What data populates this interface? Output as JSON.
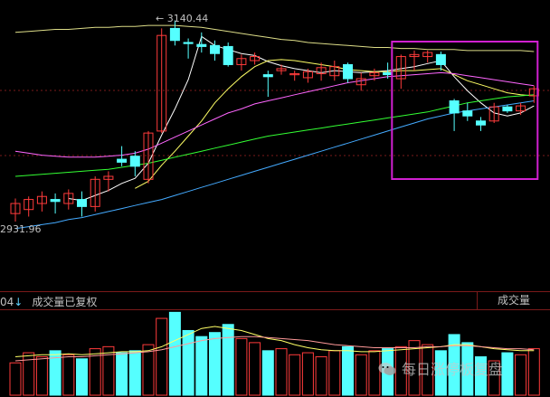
{
  "labels": {
    "high_value": "3140.44",
    "low_value": "2931.96",
    "volume_code": "04",
    "volume_title": "成交量已复权",
    "volume_right": "成交量",
    "watermark": "每日涨停板复盘"
  },
  "colors": {
    "up": "#ff3b3b",
    "down": "#55ffff",
    "ma5": "#ffffff",
    "ma10": "#ffff66",
    "ma20": "#ff66ff",
    "ma60": "#33ff33",
    "ma120": "#44aaff",
    "highlight_box": "#d020d0",
    "grid": "#7a1a1a"
  },
  "chart_data": [
    {
      "type": "candlestick",
      "title": "",
      "annotations": [
        "3140.44",
        "2931.96"
      ],
      "ylim": [
        2931.96,
        3140.44
      ],
      "candles": [
        {
          "o": 2948,
          "h": 2963,
          "l": 2940,
          "c": 2958
        },
        {
          "o": 2952,
          "h": 2965,
          "l": 2945,
          "c": 2962
        },
        {
          "o": 2958,
          "h": 2970,
          "l": 2950,
          "c": 2965
        },
        {
          "o": 2962,
          "h": 2968,
          "l": 2948,
          "c": 2960
        },
        {
          "o": 2958,
          "h": 2972,
          "l": 2952,
          "c": 2968
        },
        {
          "o": 2962,
          "h": 2970,
          "l": 2945,
          "c": 2955
        },
        {
          "o": 2955,
          "h": 2985,
          "l": 2950,
          "c": 2982
        },
        {
          "o": 2982,
          "h": 2990,
          "l": 2970,
          "c": 2985
        },
        {
          "o": 3002,
          "h": 3015,
          "l": 2995,
          "c": 2999
        },
        {
          "o": 3005,
          "h": 3010,
          "l": 2985,
          "c": 2995
        },
        {
          "o": 2982,
          "h": 3030,
          "l": 2978,
          "c": 3028
        },
        {
          "o": 3030,
          "h": 3132,
          "l": 3028,
          "c": 3125
        },
        {
          "o": 3132,
          "h": 3140,
          "l": 3115,
          "c": 3120
        },
        {
          "o": 3118,
          "h": 3122,
          "l": 3102,
          "c": 3117
        },
        {
          "o": 3116,
          "h": 3128,
          "l": 3108,
          "c": 3114
        },
        {
          "o": 3115,
          "h": 3120,
          "l": 3100,
          "c": 3107
        },
        {
          "o": 3114,
          "h": 3118,
          "l": 3094,
          "c": 3096
        },
        {
          "o": 3096,
          "h": 3106,
          "l": 3090,
          "c": 3102
        },
        {
          "o": 3100,
          "h": 3108,
          "l": 3096,
          "c": 3104
        },
        {
          "o": 3086,
          "h": 3090,
          "l": 3064,
          "c": 3084
        },
        {
          "o": 3090,
          "h": 3096,
          "l": 3086,
          "c": 3092
        },
        {
          "o": 3086,
          "h": 3090,
          "l": 3080,
          "c": 3087
        },
        {
          "o": 3083,
          "h": 3092,
          "l": 3078,
          "c": 3089
        },
        {
          "o": 3087,
          "h": 3098,
          "l": 3080,
          "c": 3093
        },
        {
          "o": 3085,
          "h": 3100,
          "l": 3080,
          "c": 3094
        },
        {
          "o": 3096,
          "h": 3098,
          "l": 3078,
          "c": 3082
        },
        {
          "o": 3076,
          "h": 3088,
          "l": 3070,
          "c": 3082
        },
        {
          "o": 3085,
          "h": 3092,
          "l": 3080,
          "c": 3088
        },
        {
          "o": 3088,
          "h": 3098,
          "l": 3082,
          "c": 3086
        },
        {
          "o": 3082,
          "h": 3106,
          "l": 3072,
          "c": 3104
        },
        {
          "o": 3104,
          "h": 3110,
          "l": 3090,
          "c": 3106
        },
        {
          "o": 3104,
          "h": 3110,
          "l": 3098,
          "c": 3108
        },
        {
          "o": 3106,
          "h": 3109,
          "l": 3090,
          "c": 3096
        },
        {
          "o": 3060,
          "h": 3062,
          "l": 3030,
          "c": 3048
        },
        {
          "o": 3050,
          "h": 3058,
          "l": 3040,
          "c": 3045
        },
        {
          "o": 3040,
          "h": 3044,
          "l": 3030,
          "c": 3036
        },
        {
          "o": 3040,
          "h": 3058,
          "l": 3038,
          "c": 3054
        },
        {
          "o": 3054,
          "h": 3056,
          "l": 3048,
          "c": 3050
        },
        {
          "o": 3050,
          "h": 3058,
          "l": 3046,
          "c": 3055
        },
        {
          "o": 3065,
          "h": 3075,
          "l": 3058,
          "c": 3072
        }
      ],
      "moving_averages": [
        {
          "key": "ma5",
          "values": [
            null,
            null,
            null,
            null,
            2963,
            2961,
            2966,
            2971,
            2978,
            2983,
            2998,
            3026,
            3052,
            3081,
            3124,
            3115,
            3111,
            3107,
            3105,
            3099,
            3095,
            3092,
            3090,
            3088,
            3090,
            3089,
            3088,
            3089,
            3090,
            3092,
            3094,
            3097,
            3100,
            3084,
            3070,
            3058,
            3048,
            3045,
            3048,
            3055
          ]
        },
        {
          "key": "ma10",
          "values": [
            null,
            null,
            null,
            null,
            null,
            null,
            null,
            null,
            null,
            2973,
            2980,
            2996,
            3010,
            3025,
            3040,
            3058,
            3072,
            3084,
            3094,
            3100,
            3101,
            3100,
            3098,
            3096,
            3094,
            3091,
            3090,
            3089,
            3089,
            3090,
            3090,
            3091,
            3092,
            3086,
            3080,
            3076,
            3072,
            3068,
            3066,
            3065
          ]
        },
        {
          "key": "ma20",
          "values": [
            3010,
            3008,
            3006,
            3005,
            3004,
            3004,
            3004,
            3005,
            3006,
            3008,
            3012,
            3018,
            3024,
            3030,
            3036,
            3042,
            3048,
            3052,
            3057,
            3060,
            3063,
            3066,
            3069,
            3072,
            3075,
            3078,
            3080,
            3082,
            3084,
            3085,
            3086,
            3087,
            3088,
            3087,
            3085,
            3083,
            3081,
            3079,
            3077,
            3075
          ]
        },
        {
          "key": "ma60",
          "values": [
            2985,
            2986,
            2987,
            2988,
            2989,
            2990,
            2991,
            2992,
            2994,
            2996,
            2998,
            3001,
            3004,
            3007,
            3010,
            3013,
            3016,
            3019,
            3022,
            3025,
            3027,
            3029,
            3031,
            3033,
            3035,
            3037,
            3039,
            3041,
            3043,
            3045,
            3047,
            3049,
            3052,
            3055,
            3058,
            3060,
            3062,
            3064,
            3065,
            3066
          ]
        },
        {
          "key": "ma120",
          "values": [
            2933,
            2935,
            2937,
            2939,
            2942,
            2944,
            2947,
            2950,
            2953,
            2956,
            2959,
            2962,
            2966,
            2970,
            2974,
            2978,
            2982,
            2986,
            2990,
            2994,
            2998,
            3002,
            3006,
            3010,
            3014,
            3018,
            3022,
            3026,
            3030,
            3034,
            3038,
            3042,
            3045,
            3048,
            3050,
            3052,
            3054,
            3056,
            3058,
            3060
          ]
        },
        {
          "key": "ma250",
          "values": [
            3128,
            3129,
            3130,
            3131,
            3131,
            3132,
            3133,
            3133,
            3134,
            3134,
            3135,
            3135,
            3135,
            3134,
            3133,
            3131,
            3129,
            3127,
            3125,
            3123,
            3121,
            3120,
            3118,
            3117,
            3116,
            3115,
            3114,
            3113,
            3113,
            3112,
            3112,
            3111,
            3111,
            3111,
            3110,
            3110,
            3110,
            3110,
            3110,
            3109
          ]
        }
      ],
      "highlight": {
        "from_index": 29,
        "to_index": 39
      }
    },
    {
      "type": "bar",
      "title": "",
      "values": [
        32,
        42,
        38,
        44,
        40,
        36,
        46,
        48,
        42,
        44,
        50,
        76,
        82,
        64,
        58,
        62,
        70,
        56,
        52,
        44,
        46,
        40,
        42,
        38,
        44,
        48,
        40,
        44,
        46,
        48,
        54,
        50,
        44,
        60,
        52,
        38,
        34,
        42,
        40,
        46
      ],
      "ma_lines": [
        [
          38,
          39,
          40,
          40,
          41,
          40,
          41,
          42,
          43,
          43,
          44,
          48,
          54,
          60,
          66,
          68,
          66,
          64,
          60,
          56,
          54,
          50,
          47,
          45,
          44,
          44,
          43,
          43,
          44,
          45,
          46,
          47,
          48,
          50,
          50,
          48,
          46,
          45,
          44,
          44
        ],
        [
          34,
          35,
          36,
          37,
          38,
          38,
          39,
          40,
          41,
          42,
          43,
          45,
          48,
          51,
          54,
          56,
          57,
          58,
          58,
          57,
          56,
          55,
          54,
          52,
          50,
          49,
          48,
          47,
          47,
          47,
          47,
          48,
          48,
          49,
          49,
          48,
          47,
          46,
          46,
          45
        ]
      ]
    }
  ]
}
